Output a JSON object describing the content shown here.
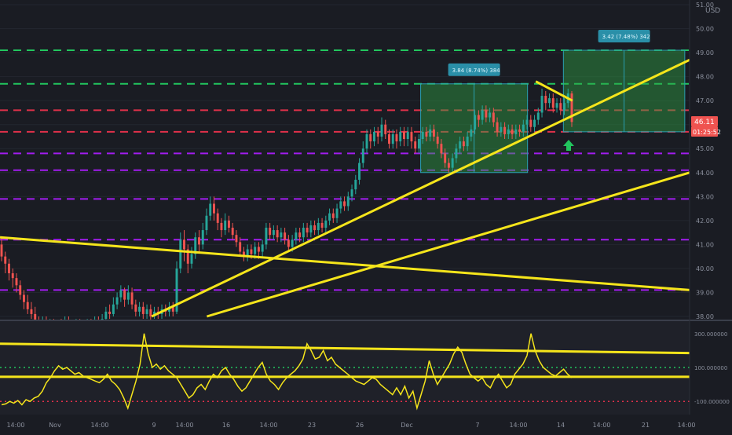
{
  "chart_data": [
    {
      "type": "candlestick",
      "title": "",
      "currency": "USD",
      "y_ticks": [
        38,
        39,
        40,
        41,
        42,
        43,
        44,
        45,
        46,
        47,
        48,
        49,
        50,
        51
      ],
      "y_tick_labels": [
        "38.00",
        "39.00",
        "40.00",
        "41.00",
        "42.00",
        "43.00",
        "44.00",
        "45.00",
        "46.00",
        "47.00",
        "48.00",
        "49.00",
        "50.00",
        "51.00"
      ],
      "ylim": [
        38.0,
        51.0
      ],
      "x_tick_labels": [
        "14:00",
        "Nov",
        "14:00",
        "9",
        "14:00",
        "16",
        "14:00",
        "23",
        "26",
        "Dec",
        "7",
        "14:00",
        "14",
        "14:00",
        "21",
        "14:00"
      ],
      "last_price_label": "46.11",
      "countdown_label": "01:25:52",
      "colors": {
        "up": "#26a69a",
        "down": "#ef5350",
        "trend": "#f5e51b",
        "support": "#22c55e",
        "resistance": "#e0304a",
        "level": "#a21cf0"
      },
      "horizontal_levels": [
        {
          "price": 49.1,
          "color": "support"
        },
        {
          "price": 47.7,
          "color": "support"
        },
        {
          "price": 46.6,
          "color": "resistance"
        },
        {
          "price": 45.7,
          "color": "resistance"
        },
        {
          "price": 44.8,
          "color": "level"
        },
        {
          "price": 44.1,
          "color": "level"
        },
        {
          "price": 42.9,
          "color": "level"
        },
        {
          "price": 41.2,
          "color": "level"
        },
        {
          "price": 39.1,
          "color": "level"
        }
      ],
      "trend_lines": [
        {
          "from": [
            0.0,
            41.3
          ],
          "to": [
            1.0,
            39.1
          ]
        },
        {
          "from": [
            0.22,
            38.0
          ],
          "to": [
            1.0,
            48.7
          ]
        },
        {
          "from": [
            0.3,
            38.0
          ],
          "to": [
            1.0,
            44.0
          ]
        },
        {
          "from": [
            0.777,
            47.8
          ],
          "to": [
            0.83,
            47.0
          ]
        }
      ],
      "measure_boxes": [
        {
          "label": "3.84 (8.74%) 384",
          "x0": 0.61,
          "x1": 0.765,
          "top": 47.7,
          "bottom": 44.0
        },
        {
          "label": "3.42 (7.48%) 342",
          "x0": 0.817,
          "x1": 0.993,
          "top": 49.1,
          "bottom": 45.7
        }
      ],
      "candles": [
        [
          41.0,
          40.5,
          41.3,
          40.3
        ],
        [
          40.5,
          40.2,
          40.7,
          39.8
        ],
        [
          40.2,
          39.8,
          40.4,
          39.5
        ],
        [
          39.8,
          39.6,
          40.0,
          39.2
        ],
        [
          39.6,
          39.3,
          39.8,
          39.0
        ],
        [
          39.3,
          38.9,
          39.5,
          38.7
        ],
        [
          38.9,
          38.6,
          39.1,
          38.3
        ],
        [
          38.6,
          38.3,
          38.9,
          38.1
        ],
        [
          38.3,
          38.1,
          38.6,
          37.9
        ],
        [
          38.1,
          37.8,
          38.4,
          37.6
        ],
        [
          37.8,
          37.6,
          38.0,
          37.4
        ],
        [
          37.6,
          37.8,
          38.0,
          37.3
        ],
        [
          37.8,
          37.5,
          38.0,
          37.2
        ],
        [
          37.5,
          37.7,
          37.9,
          37.3
        ],
        [
          37.7,
          37.4,
          37.9,
          37.1
        ],
        [
          37.4,
          37.6,
          37.8,
          37.2
        ],
        [
          37.6,
          37.5,
          37.9,
          37.2
        ],
        [
          37.5,
          37.8,
          38.0,
          37.3
        ],
        [
          37.8,
          37.6,
          38.0,
          37.4
        ],
        [
          37.6,
          37.5,
          37.8,
          37.2
        ],
        [
          37.5,
          37.7,
          37.9,
          37.3
        ],
        [
          37.7,
          37.6,
          37.9,
          37.4
        ],
        [
          37.6,
          37.4,
          37.8,
          37.2
        ],
        [
          37.4,
          37.7,
          37.9,
          37.3
        ],
        [
          37.7,
          37.5,
          37.9,
          37.3
        ],
        [
          37.5,
          37.8,
          38.0,
          37.3
        ],
        [
          37.8,
          37.6,
          38.0,
          37.4
        ],
        [
          37.6,
          37.9,
          38.1,
          37.4
        ],
        [
          37.9,
          38.2,
          38.4,
          37.8
        ],
        [
          38.2,
          38.1,
          38.5,
          37.9
        ],
        [
          38.1,
          38.5,
          38.8,
          38.0
        ],
        [
          38.5,
          38.8,
          39.0,
          38.3
        ],
        [
          38.8,
          39.1,
          39.3,
          38.6
        ],
        [
          39.1,
          38.7,
          39.2,
          38.4
        ],
        [
          38.7,
          39.0,
          39.3,
          38.5
        ],
        [
          39.0,
          38.5,
          39.2,
          38.3
        ],
        [
          38.5,
          38.2,
          38.7,
          38.0
        ],
        [
          38.2,
          38.4,
          38.6,
          38.0
        ],
        [
          38.4,
          38.1,
          38.6,
          37.9
        ],
        [
          38.1,
          38.3,
          38.5,
          37.9
        ],
        [
          38.3,
          38.0,
          38.5,
          37.8
        ],
        [
          38.0,
          38.2,
          38.4,
          37.9
        ],
        [
          38.2,
          38.1,
          38.4,
          37.9
        ],
        [
          38.1,
          38.3,
          38.5,
          37.9
        ],
        [
          38.3,
          38.2,
          38.5,
          38.0
        ],
        [
          38.2,
          38.4,
          38.6,
          38.0
        ],
        [
          38.4,
          38.2,
          38.6,
          38.0
        ],
        [
          38.2,
          40.0,
          40.3,
          38.1
        ],
        [
          40.0,
          41.2,
          41.5,
          39.8
        ],
        [
          41.2,
          40.8,
          41.6,
          40.3
        ],
        [
          40.8,
          40.2,
          41.0,
          39.8
        ],
        [
          40.2,
          40.6,
          40.9,
          40.0
        ],
        [
          40.6,
          41.3,
          41.5,
          40.4
        ],
        [
          41.3,
          41.0,
          41.6,
          40.7
        ],
        [
          41.0,
          41.6,
          41.9,
          40.8
        ],
        [
          41.6,
          42.2,
          42.5,
          41.4
        ],
        [
          42.2,
          42.7,
          43.0,
          42.0
        ],
        [
          42.7,
          42.3,
          43.0,
          42.0
        ],
        [
          42.3,
          41.9,
          42.5,
          41.6
        ],
        [
          41.9,
          41.6,
          42.1,
          41.3
        ],
        [
          41.6,
          42.0,
          42.3,
          41.4
        ],
        [
          42.0,
          41.7,
          42.2,
          41.5
        ],
        [
          41.7,
          41.4,
          41.9,
          41.2
        ],
        [
          41.4,
          41.1,
          41.6,
          40.9
        ],
        [
          41.1,
          40.7,
          41.3,
          40.5
        ],
        [
          40.7,
          40.5,
          40.9,
          40.3
        ],
        [
          40.5,
          40.8,
          41.0,
          40.3
        ],
        [
          40.8,
          40.6,
          41.0,
          40.4
        ],
        [
          40.6,
          40.9,
          41.1,
          40.4
        ],
        [
          40.9,
          40.7,
          41.1,
          40.4
        ],
        [
          40.7,
          41.0,
          41.2,
          40.5
        ],
        [
          41.0,
          41.7,
          41.9,
          40.8
        ],
        [
          41.7,
          41.4,
          41.9,
          41.2
        ],
        [
          41.4,
          41.6,
          41.8,
          41.2
        ],
        [
          41.6,
          41.3,
          41.8,
          41.1
        ],
        [
          41.3,
          41.5,
          41.7,
          41.1
        ],
        [
          41.5,
          41.2,
          41.7,
          41.0
        ],
        [
          41.2,
          40.9,
          41.4,
          40.7
        ],
        [
          40.9,
          41.2,
          41.4,
          40.7
        ],
        [
          41.2,
          41.5,
          41.7,
          41.0
        ],
        [
          41.5,
          41.3,
          41.7,
          41.1
        ],
        [
          41.3,
          41.7,
          41.9,
          41.1
        ],
        [
          41.7,
          41.5,
          41.9,
          41.3
        ],
        [
          41.5,
          41.8,
          42.0,
          41.3
        ],
        [
          41.8,
          41.6,
          42.0,
          41.4
        ],
        [
          41.6,
          41.9,
          42.1,
          41.4
        ],
        [
          41.9,
          41.7,
          42.1,
          41.5
        ],
        [
          41.7,
          42.0,
          42.2,
          41.5
        ],
        [
          42.0,
          42.3,
          42.5,
          41.8
        ],
        [
          42.3,
          42.1,
          42.5,
          41.9
        ],
        [
          42.1,
          42.5,
          42.7,
          41.9
        ],
        [
          42.5,
          42.8,
          43.0,
          42.3
        ],
        [
          42.8,
          42.6,
          43.0,
          42.4
        ],
        [
          42.6,
          43.0,
          43.2,
          42.4
        ],
        [
          43.0,
          43.3,
          43.5,
          42.8
        ],
        [
          43.3,
          43.7,
          43.9,
          43.1
        ],
        [
          43.7,
          44.4,
          44.6,
          43.5
        ],
        [
          44.4,
          45.0,
          45.3,
          44.2
        ],
        [
          45.0,
          45.6,
          45.8,
          44.8
        ],
        [
          45.6,
          45.3,
          45.8,
          45.0
        ],
        [
          45.3,
          45.7,
          45.9,
          45.1
        ],
        [
          45.7,
          45.5,
          45.9,
          45.2
        ],
        [
          45.5,
          46.0,
          46.3,
          45.3
        ],
        [
          46.0,
          45.6,
          46.2,
          45.4
        ],
        [
          45.6,
          45.2,
          45.8,
          45.0
        ],
        [
          45.2,
          45.6,
          45.8,
          45.0
        ],
        [
          45.6,
          45.3,
          45.8,
          45.0
        ],
        [
          45.3,
          45.7,
          45.9,
          45.1
        ],
        [
          45.7,
          45.4,
          45.9,
          45.1
        ],
        [
          45.4,
          45.7,
          45.9,
          45.1
        ],
        [
          45.7,
          45.3,
          45.9,
          45.0
        ],
        [
          45.3,
          45.0,
          45.5,
          44.8
        ],
        [
          45.0,
          45.4,
          45.6,
          44.8
        ],
        [
          45.4,
          45.7,
          45.9,
          45.2
        ],
        [
          45.7,
          45.5,
          45.9,
          45.3
        ],
        [
          45.5,
          45.8,
          46.0,
          45.3
        ],
        [
          45.8,
          45.5,
          46.0,
          45.3
        ],
        [
          45.5,
          45.2,
          45.7,
          45.0
        ],
        [
          45.2,
          44.8,
          45.4,
          44.6
        ],
        [
          44.8,
          44.4,
          45.0,
          44.2
        ],
        [
          44.4,
          44.2,
          44.6,
          44.0
        ],
        [
          44.2,
          44.6,
          44.8,
          44.0
        ],
        [
          44.6,
          45.0,
          45.2,
          44.4
        ],
        [
          45.0,
          45.3,
          45.5,
          44.8
        ],
        [
          45.3,
          45.1,
          45.5,
          44.9
        ],
        [
          45.1,
          45.5,
          45.7,
          44.9
        ],
        [
          45.5,
          45.8,
          46.0,
          45.3
        ],
        [
          45.8,
          46.4,
          46.6,
          45.6
        ],
        [
          46.4,
          46.2,
          46.6,
          45.9
        ],
        [
          46.2,
          46.6,
          46.8,
          46.0
        ],
        [
          46.6,
          46.3,
          46.8,
          46.1
        ],
        [
          46.3,
          46.5,
          46.7,
          46.1
        ],
        [
          46.5,
          46.1,
          46.7,
          45.9
        ],
        [
          46.1,
          45.7,
          46.3,
          45.5
        ],
        [
          45.7,
          45.9,
          46.1,
          45.5
        ],
        [
          45.9,
          45.6,
          46.1,
          45.4
        ],
        [
          45.6,
          45.8,
          46.0,
          45.4
        ],
        [
          45.8,
          45.6,
          46.0,
          45.4
        ],
        [
          45.6,
          45.8,
          46.0,
          45.4
        ],
        [
          45.8,
          45.7,
          46.0,
          45.5
        ],
        [
          45.7,
          46.0,
          46.2,
          45.5
        ],
        [
          46.0,
          46.2,
          46.4,
          45.8
        ],
        [
          46.2,
          45.9,
          46.4,
          45.7
        ],
        [
          45.9,
          46.2,
          46.4,
          45.7
        ],
        [
          46.2,
          46.5,
          46.7,
          46.0
        ],
        [
          46.5,
          47.2,
          47.5,
          46.3
        ],
        [
          47.2,
          46.9,
          47.4,
          46.6
        ],
        [
          46.9,
          47.1,
          47.3,
          46.7
        ],
        [
          47.1,
          46.7,
          47.3,
          46.5
        ],
        [
          46.7,
          46.9,
          47.1,
          46.5
        ],
        [
          46.9,
          46.6,
          47.1,
          46.4
        ],
        [
          46.6,
          46.9,
          47.1,
          46.4
        ],
        [
          46.9,
          47.3,
          47.5,
          46.7
        ],
        [
          47.3,
          46.11,
          47.4,
          45.9
        ]
      ],
      "volume_like_bars": true
    },
    {
      "type": "line",
      "title": "",
      "y_tick_labels": [
        "300.000000",
        "100.000000",
        "-100.000000"
      ],
      "ylim": [
        -150,
        350
      ],
      "reference_lines": [
        100,
        -100
      ],
      "series": [
        {
          "values": [
            -120,
            -115,
            -100,
            -110,
            -95,
            -120,
            -90,
            -100,
            -80,
            -70,
            -40,
            10,
            40,
            80,
            110,
            90,
            100,
            80,
            60,
            70,
            50,
            40,
            30,
            20,
            10,
            30,
            60,
            20,
            0,
            -30,
            -80,
            -140,
            -60,
            20,
            120,
            300,
            180,
            100,
            120,
            90,
            110,
            80,
            60,
            40,
            0,
            -40,
            -80,
            -60,
            -20,
            0,
            -30,
            20,
            60,
            40,
            80,
            100,
            60,
            30,
            -10,
            -40,
            -20,
            20,
            60,
            100,
            130,
            60,
            20,
            0,
            -30,
            10,
            40,
            60,
            80,
            110,
            150,
            240,
            200,
            150,
            160,
            200,
            140,
            160,
            120,
            100,
            80,
            60,
            40,
            20,
            10,
            0,
            20,
            40,
            30,
            0,
            -20,
            -40,
            -60,
            -20,
            -60,
            -10,
            -80,
            -40,
            -140,
            -60,
            20,
            140,
            60,
            0,
            40,
            80,
            120,
            180,
            220,
            190,
            120,
            60,
            40,
            20,
            40,
            0,
            -20,
            30,
            60,
            20,
            -20,
            0,
            60,
            90,
            120,
            170,
            300,
            200,
            140,
            100,
            80,
            60,
            50,
            70,
            90,
            60,
            40
          ]
        }
      ]
    }
  ]
}
